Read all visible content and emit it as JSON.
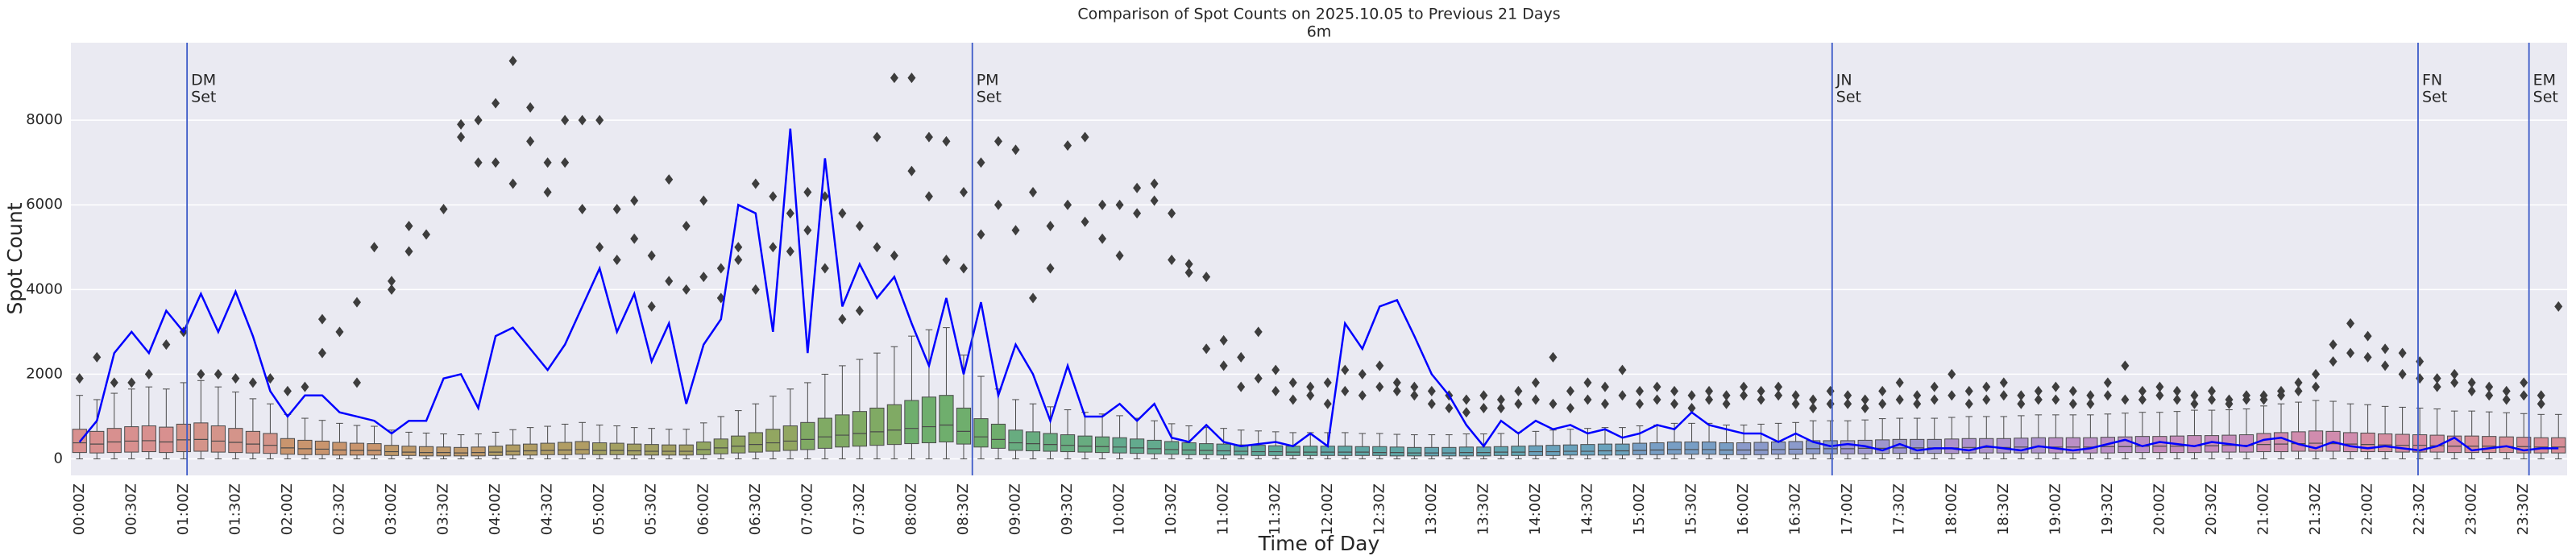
{
  "chart_data": {
    "type": "box",
    "title": "Comparison of Spot Counts on 2025.10.05 to Previous 21 Days",
    "subtitle": "6m",
    "x_label": "Time of Day",
    "y_label": "Spot Count",
    "ylim": [
      -390,
      9830
    ],
    "yticks": [
      0,
      2000,
      4000,
      6000,
      8000
    ],
    "grid": "y",
    "categories": [
      "00:00Z",
      null,
      null,
      "00:30Z",
      null,
      null,
      "01:00Z",
      null,
      null,
      "01:30Z",
      null,
      null,
      "02:00Z",
      null,
      null,
      "02:30Z",
      null,
      null,
      "03:00Z",
      null,
      null,
      "03:30Z",
      null,
      null,
      "04:00Z",
      null,
      null,
      "04:30Z",
      null,
      null,
      "05:00Z",
      null,
      null,
      "05:30Z",
      null,
      null,
      "06:00Z",
      null,
      null,
      "06:30Z",
      null,
      null,
      "07:00Z",
      null,
      null,
      "07:30Z",
      null,
      null,
      "08:00Z",
      null,
      null,
      "08:30Z",
      null,
      null,
      "09:00Z",
      null,
      null,
      "09:30Z",
      null,
      null,
      "10:00Z",
      null,
      null,
      "10:30Z",
      null,
      null,
      "11:00Z",
      null,
      null,
      "11:30Z",
      null,
      null,
      "12:00Z",
      null,
      null,
      "12:30Z",
      null,
      null,
      "13:00Z",
      null,
      null,
      "13:30Z",
      null,
      null,
      "14:00Z",
      null,
      null,
      "14:30Z",
      null,
      null,
      "15:00Z",
      null,
      null,
      "15:30Z",
      null,
      null,
      "16:00Z",
      null,
      null,
      "16:30Z",
      null,
      null,
      "17:00Z",
      null,
      null,
      "17:30Z",
      null,
      null,
      "18:00Z",
      null,
      null,
      "18:30Z",
      null,
      null,
      "19:00Z",
      null,
      null,
      "19:30Z",
      null,
      null,
      "20:00Z",
      null,
      null,
      "20:30Z",
      null,
      null,
      "21:00Z",
      null,
      null,
      "21:30Z",
      null,
      null,
      "22:00Z",
      null,
      null,
      "22:30Z",
      null,
      null,
      "23:00Z",
      null,
      null,
      "23:30Z",
      null,
      null
    ],
    "box_colors": [
      "#d8908f",
      "#d4948a",
      "#c9956e",
      "#c09a6b",
      "#b19d64",
      "#a3a062",
      "#92a661",
      "#80aa64",
      "#6fae6d",
      "#68ac80",
      "#63aa8e",
      "#60a99a",
      "#5fa7a6",
      "#62a5b1",
      "#6aa2bc",
      "#789ec5",
      "#8b9acb",
      "#9d96cd",
      "#ad92cb",
      "#bb8fc5",
      "#c68dbb",
      "#d08cae",
      "#d58da1",
      "#d78e97"
    ],
    "q1": [
      150,
      140,
      150,
      160,
      170,
      150,
      170,
      180,
      160,
      150,
      140,
      130,
      110,
      100,
      100,
      90,
      90,
      90,
      80,
      80,
      70,
      70,
      70,
      70,
      80,
      90,
      90,
      100,
      100,
      110,
      100,
      100,
      90,
      90,
      90,
      90,
      100,
      120,
      140,
      160,
      180,
      200,
      220,
      250,
      280,
      300,
      320,
      340,
      360,
      380,
      400,
      350,
      280,
      250,
      200,
      190,
      180,
      170,
      160,
      150,
      140,
      130,
      120,
      110,
      100,
      100,
      90,
      90,
      80,
      80,
      80,
      80,
      80,
      80,
      80,
      80,
      70,
      70,
      70,
      70,
      70,
      70,
      80,
      80,
      80,
      80,
      90,
      90,
      90,
      90,
      100,
      100,
      110,
      110,
      110,
      100,
      100,
      100,
      110,
      110,
      120,
      120,
      120,
      120,
      130,
      130,
      130,
      130,
      130,
      140,
      140,
      140,
      140,
      140,
      140,
      140,
      140,
      140,
      150,
      150,
      150,
      150,
      150,
      160,
      160,
      160,
      170,
      170,
      180,
      180,
      180,
      170,
      170,
      170,
      160,
      160,
      160,
      150,
      150,
      150,
      150,
      140,
      140,
      140
    ],
    "median": [
      380,
      350,
      400,
      420,
      430,
      400,
      450,
      460,
      420,
      390,
      350,
      320,
      260,
      240,
      230,
      210,
      200,
      200,
      170,
      160,
      150,
      150,
      140,
      150,
      160,
      180,
      190,
      200,
      210,
      220,
      200,
      200,
      190,
      180,
      180,
      180,
      220,
      260,
      300,
      340,
      380,
      420,
      460,
      520,
      560,
      600,
      640,
      680,
      720,
      760,
      800,
      650,
      520,
      460,
      380,
      360,
      340,
      320,
      300,
      290,
      280,
      260,
      240,
      220,
      210,
      200,
      190,
      180,
      170,
      170,
      160,
      160,
      160,
      160,
      160,
      150,
      150,
      140,
      140,
      140,
      150,
      150,
      160,
      160,
      170,
      170,
      180,
      180,
      190,
      190,
      200,
      210,
      220,
      220,
      220,
      210,
      210,
      210,
      220,
      230,
      240,
      240,
      240,
      250,
      250,
      260,
      260,
      260,
      260,
      270,
      270,
      270,
      280,
      280,
      280,
      280,
      280,
      290,
      290,
      300,
      300,
      300,
      310,
      310,
      320,
      320,
      340,
      350,
      360,
      370,
      360,
      350,
      340,
      330,
      320,
      320,
      310,
      300,
      300,
      300,
      290,
      290,
      280,
      280
    ],
    "q3": [
      700,
      650,
      720,
      760,
      780,
      750,
      820,
      850,
      780,
      720,
      650,
      600,
      480,
      440,
      420,
      390,
      370,
      360,
      320,
      300,
      290,
      280,
      270,
      280,
      300,
      330,
      350,
      370,
      390,
      410,
      380,
      370,
      350,
      340,
      330,
      330,
      400,
      470,
      540,
      620,
      700,
      780,
      860,
      960,
      1040,
      1120,
      1200,
      1280,
      1380,
      1460,
      1500,
      1200,
      950,
      820,
      680,
      640,
      600,
      570,
      540,
      520,
      500,
      470,
      440,
      410,
      380,
      360,
      350,
      330,
      320,
      310,
      300,
      300,
      300,
      300,
      290,
      290,
      280,
      270,
      270,
      270,
      280,
      280,
      290,
      300,
      310,
      320,
      330,
      340,
      350,
      350,
      370,
      380,
      400,
      400,
      400,
      380,
      380,
      390,
      400,
      410,
      430,
      430,
      430,
      440,
      450,
      460,
      460,
      460,
      470,
      480,
      480,
      480,
      490,
      500,
      500,
      500,
      500,
      510,
      520,
      530,
      530,
      540,
      550,
      550,
      560,
      570,
      600,
      620,
      640,
      660,
      650,
      620,
      610,
      590,
      580,
      570,
      560,
      540,
      540,
      530,
      520,
      510,
      500,
      500
    ],
    "whisker_low": [
      0,
      0,
      0,
      0,
      0,
      0,
      0,
      0,
      0,
      0,
      0,
      0,
      0,
      0,
      0,
      0,
      0,
      0,
      0,
      0,
      0,
      0,
      0,
      0,
      0,
      0,
      0,
      0,
      0,
      0,
      0,
      0,
      0,
      0,
      0,
      0,
      0,
      0,
      0,
      0,
      0,
      0,
      0,
      0,
      0,
      0,
      0,
      0,
      0,
      0,
      0,
      0,
      0,
      0,
      0,
      0,
      0,
      0,
      0,
      0,
      0,
      0,
      0,
      0,
      0,
      0,
      0,
      0,
      0,
      0,
      0,
      0,
      0,
      0,
      0,
      0,
      0,
      0,
      0,
      0,
      0,
      0,
      0,
      0,
      0,
      0,
      0,
      0,
      0,
      0,
      0,
      0,
      0,
      0,
      0,
      0,
      0,
      0,
      0,
      0,
      0,
      0,
      0,
      0,
      0,
      0,
      0,
      0,
      0,
      0,
      0,
      0,
      0,
      0,
      0,
      0,
      0,
      0,
      0,
      0,
      0,
      0,
      0,
      0,
      0,
      0,
      0,
      0,
      0,
      0,
      0,
      0,
      0,
      0,
      0,
      0,
      0,
      0,
      0,
      0,
      0,
      0,
      0,
      0
    ],
    "whisker_high": [
      1500,
      1400,
      1550,
      1650,
      1700,
      1650,
      1800,
      1850,
      1700,
      1580,
      1420,
      1300,
      1050,
      960,
      910,
      840,
      790,
      770,
      680,
      630,
      610,
      590,
      570,
      590,
      630,
      690,
      740,
      770,
      820,
      860,
      800,
      780,
      740,
      720,
      700,
      700,
      850,
      1000,
      1140,
      1300,
      1480,
      1650,
      1800,
      2000,
      2200,
      2350,
      2500,
      2650,
      2900,
      3050,
      3100,
      2450,
      1950,
      1650,
      1400,
      1300,
      1230,
      1160,
      1100,
      1060,
      1020,
      960,
      900,
      830,
      780,
      740,
      720,
      680,
      660,
      640,
      620,
      620,
      620,
      620,
      600,
      600,
      580,
      570,
      570,
      570,
      590,
      590,
      600,
      630,
      650,
      680,
      700,
      720,
      740,
      740,
      780,
      800,
      840,
      840,
      840,
      800,
      800,
      820,
      840,
      860,
      900,
      900,
      900,
      920,
      950,
      960,
      960,
      960,
      980,
      1000,
      1000,
      1000,
      1020,
      1040,
      1040,
      1040,
      1040,
      1060,
      1080,
      1100,
      1100,
      1120,
      1150,
      1150,
      1160,
      1180,
      1250,
      1300,
      1340,
      1380,
      1360,
      1300,
      1280,
      1240,
      1220,
      1200,
      1180,
      1130,
      1130,
      1110,
      1090,
      1070,
      1050,
      1050
    ],
    "outliers": [
      [
        1900
      ],
      [
        2400
      ],
      [
        1800
      ],
      [
        1800
      ],
      [
        2000
      ],
      [
        2700
      ],
      [
        3000
      ],
      [
        2000
      ],
      [
        2000
      ],
      [
        1900
      ],
      [
        1800
      ],
      [
        1900
      ],
      [
        1600
      ],
      [
        1700
      ],
      [
        2500,
        3300
      ],
      [
        3000
      ],
      [
        3700,
        1800
      ],
      [
        5000
      ],
      [
        4000,
        4200
      ],
      [
        5500,
        4900
      ],
      [
        5300
      ],
      [
        5900
      ],
      [
        7600,
        7900
      ],
      [
        7000,
        8000
      ],
      [
        8400,
        7000
      ],
      [
        9400,
        6500
      ],
      [
        8300,
        7500
      ],
      [
        7000,
        6300
      ],
      [
        8000,
        7000
      ],
      [
        8000,
        5900
      ],
      [
        8000,
        5000
      ],
      [
        5900,
        4700
      ],
      [
        5200,
        6100
      ],
      [
        4800,
        3600
      ],
      [
        6600,
        4200
      ],
      [
        5500,
        4000
      ],
      [
        6100,
        4300
      ],
      [
        4500,
        3800
      ],
      [
        5000,
        4700
      ],
      [
        6500,
        4000
      ],
      [
        6200,
        5000
      ],
      [
        5800,
        4900
      ],
      [
        5400,
        6300
      ],
      [
        6200,
        4500
      ],
      [
        5800,
        3300
      ],
      [
        5500,
        3500
      ],
      [
        7600,
        5000
      ],
      [
        9000,
        4800
      ],
      [
        9000,
        6800
      ],
      [
        7600,
        6200
      ],
      [
        7500,
        4700
      ],
      [
        6300,
        4500
      ],
      [
        7000,
        5300
      ],
      [
        7500,
        6000
      ],
      [
        7300,
        5400
      ],
      [
        6300,
        3800
      ],
      [
        5500,
        4500
      ],
      [
        7400,
        6000
      ],
      [
        7600,
        5600
      ],
      [
        6000,
        5200
      ],
      [
        6000,
        4800
      ],
      [
        6400,
        5800
      ],
      [
        6500,
        6100
      ],
      [
        5800,
        4700
      ],
      [
        4600,
        4400
      ],
      [
        4300,
        2600
      ],
      [
        2800,
        2200
      ],
      [
        2400,
        1700
      ],
      [
        3000,
        1900
      ],
      [
        2100,
        1600
      ],
      [
        1800,
        1400
      ],
      [
        1700,
        1500
      ],
      [
        1800,
        1300
      ],
      [
        2100,
        1600
      ],
      [
        2000,
        1500
      ],
      [
        2200,
        1700
      ],
      [
        1800,
        1600
      ],
      [
        1700,
        1500
      ],
      [
        1600,
        1300
      ],
      [
        1500,
        1200
      ],
      [
        1400,
        1100
      ],
      [
        1500,
        1200
      ],
      [
        1400,
        1200
      ],
      [
        1600,
        1300
      ],
      [
        1800,
        1400
      ],
      [
        2400,
        1300
      ],
      [
        1600,
        1200
      ],
      [
        1800,
        1400
      ],
      [
        1700,
        1300
      ],
      [
        2100,
        1500
      ],
      [
        1600,
        1300
      ],
      [
        1700,
        1400
      ],
      [
        1600,
        1300
      ],
      [
        1500,
        1200
      ],
      [
        1600,
        1400
      ],
      [
        1500,
        1300
      ],
      [
        1700,
        1500
      ],
      [
        1600,
        1400
      ],
      [
        1700,
        1500
      ],
      [
        1500,
        1300
      ],
      [
        1400,
        1200
      ],
      [
        1600,
        1300
      ],
      [
        1500,
        1300
      ],
      [
        1400,
        1200
      ],
      [
        1600,
        1300
      ],
      [
        1800,
        1400
      ],
      [
        1500,
        1300
      ],
      [
        1700,
        1400
      ],
      [
        2000,
        1500
      ],
      [
        1600,
        1300
      ],
      [
        1700,
        1400
      ],
      [
        1800,
        1500
      ],
      [
        1500,
        1300
      ],
      [
        1600,
        1400
      ],
      [
        1700,
        1400
      ],
      [
        1600,
        1300
      ],
      [
        1500,
        1300
      ],
      [
        1800,
        1500
      ],
      [
        2200,
        1400
      ],
      [
        1600,
        1400
      ],
      [
        1700,
        1500
      ],
      [
        1600,
        1400
      ],
      [
        1500,
        1300
      ],
      [
        1600,
        1400
      ],
      [
        1400,
        1300
      ],
      [
        1500,
        1400
      ],
      [
        1400,
        1500
      ],
      [
        1500,
        1600
      ],
      [
        1800,
        1600
      ],
      [
        2000,
        1700
      ],
      [
        2700,
        2300
      ],
      [
        3200,
        2500
      ],
      [
        2900,
        2400
      ],
      [
        2600,
        2200
      ],
      [
        2500,
        2000
      ],
      [
        2300,
        1900
      ],
      [
        1900,
        1700
      ],
      [
        2000,
        1800
      ],
      [
        1800,
        1600
      ],
      [
        1700,
        1500
      ],
      [
        1600,
        1400
      ],
      [
        1800,
        1500
      ],
      [
        1500,
        1300
      ],
      [
        3600
      ]
    ],
    "line": {
      "color": "#0000ff",
      "values": [
        400,
        900,
        2500,
        3000,
        2500,
        3500,
        3000,
        3900,
        3000,
        3950,
        2900,
        1600,
        1000,
        1500,
        1500,
        1100,
        1000,
        900,
        600,
        900,
        900,
        1900,
        2000,
        1200,
        2900,
        3100,
        2600,
        2100,
        2700,
        3600,
        4500,
        3000,
        3900,
        2300,
        3200,
        1300,
        2700,
        3300,
        6000,
        5800,
        3000,
        7800,
        2500,
        7100,
        3600,
        4600,
        3800,
        4300,
        3200,
        2200,
        3800,
        2000,
        3700,
        1500,
        2700,
        2000,
        900,
        2200,
        1000,
        1000,
        1300,
        900,
        1300,
        500,
        400,
        800,
        400,
        300,
        350,
        400,
        300,
        600,
        300,
        3200,
        2600,
        3600,
        3750,
        2900,
        2000,
        1500,
        800,
        300,
        900,
        600,
        900,
        700,
        800,
        600,
        700,
        500,
        600,
        800,
        700,
        1100,
        800,
        700,
        600,
        600,
        400,
        600,
        400,
        300,
        350,
        300,
        200,
        350,
        200,
        250,
        250,
        200,
        300,
        250,
        200,
        300,
        250,
        200,
        250,
        350,
        450,
        300,
        400,
        350,
        300,
        400,
        350,
        300,
        450,
        500,
        350,
        250,
        400,
        300,
        250,
        300,
        250,
        200,
        300,
        500,
        200,
        250,
        300,
        200,
        250,
        250
      ]
    },
    "vline_color": "#3c5ac8",
    "vlines": [
      {
        "label": [
          "DM",
          "Set"
        ],
        "x": 6.2
      },
      {
        "label": [
          "PM",
          "Set"
        ],
        "x": 51.5
      },
      {
        "label": [
          "JN",
          "Set"
        ],
        "x": 101.1
      },
      {
        "label": [
          "FN",
          "Set"
        ],
        "x": 134.9
      },
      {
        "label": [
          "EM",
          "Set"
        ],
        "x": 141.3
      }
    ]
  }
}
